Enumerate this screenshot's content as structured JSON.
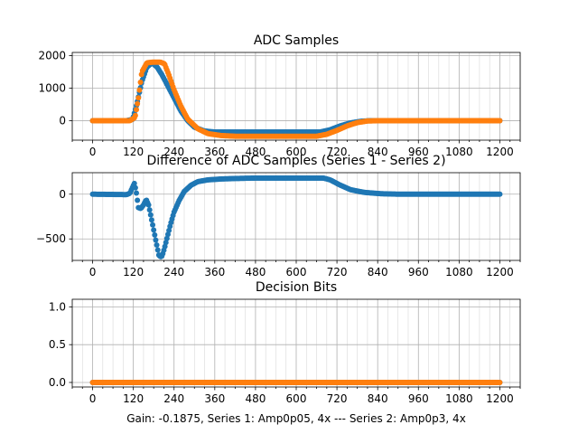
{
  "footer": "Gain: -0.1875, Series 1: Amp0p05, 4x --- Series 2: Amp0p3, 4x",
  "colors": {
    "series1": "#1f77b4",
    "series2": "#ff7f0e"
  },
  "chart_data": [
    {
      "type": "scatter",
      "title": "ADC Samples",
      "xlim": [
        -60,
        1260
      ],
      "ylim": [
        -600,
        2100
      ],
      "xticks": [
        0,
        120,
        240,
        360,
        480,
        600,
        720,
        840,
        960,
        1080,
        1200
      ],
      "xtick_labels": [
        "0",
        "120",
        "240",
        "360",
        "480",
        "600",
        "720",
        "840",
        "960",
        "1080",
        "1200"
      ],
      "yticks": [
        0,
        1000,
        2000
      ],
      "ytick_labels": [
        "0",
        "1000",
        "2000"
      ],
      "x_minor_step": 30,
      "grid": true,
      "series": [
        {
          "color": "#1f77b4",
          "x": [
            0,
            100,
            118,
            130,
            145,
            160,
            175,
            190,
            205,
            220,
            240,
            260,
            280,
            300,
            330,
            360,
            400,
            480,
            600,
            670,
            700,
            730,
            760,
            790,
            820,
            860,
            900,
            1200
          ],
          "y": [
            0,
            0,
            40,
            500,
            1200,
            1650,
            1780,
            1650,
            1400,
            1100,
            700,
            300,
            0,
            -200,
            -320,
            -350,
            -350,
            -350,
            -350,
            -350,
            -280,
            -160,
            -70,
            -20,
            0,
            0,
            0,
            0
          ]
        },
        {
          "color": "#ff7f0e",
          "x": [
            0,
            110,
            125,
            135,
            145,
            160,
            175,
            200,
            212,
            225,
            240,
            260,
            280,
            310,
            340,
            380,
            420,
            480,
            600,
            660,
            690,
            720,
            750,
            780,
            810,
            850,
            900,
            1200
          ],
          "y": [
            0,
            0,
            100,
            700,
            1500,
            1780,
            1800,
            1800,
            1750,
            1400,
            950,
            450,
            50,
            -250,
            -400,
            -460,
            -480,
            -480,
            -480,
            -480,
            -420,
            -300,
            -160,
            -60,
            -10,
            0,
            0,
            0
          ]
        }
      ]
    },
    {
      "type": "scatter",
      "title": "Difference of ADC Samples (Series 1 - Series 2)",
      "xlim": [
        -60,
        1260
      ],
      "ylim": [
        -740,
        240
      ],
      "xticks": [
        0,
        120,
        240,
        360,
        480,
        600,
        720,
        840,
        960,
        1080,
        1200
      ],
      "xtick_labels": [
        "0",
        "120",
        "240",
        "360",
        "480",
        "600",
        "720",
        "840",
        "960",
        "1080",
        "1200"
      ],
      "yticks": [
        -500,
        0
      ],
      "ytick_labels": [
        "−500",
        "0"
      ],
      "x_minor_step": 30,
      "grid": true,
      "series": [
        {
          "color": "#1f77b4",
          "x": [
            0,
            100,
            110,
            118,
            123,
            128,
            135,
            142,
            150,
            158,
            165,
            172,
            180,
            188,
            195,
            200,
            205,
            212,
            220,
            230,
            240,
            255,
            270,
            290,
            310,
            340,
            380,
            420,
            480,
            560,
            640,
            680,
            700,
            730,
            760,
            800,
            850,
            900,
            1000,
            1100,
            1200
          ],
          "y": [
            0,
            -5,
            10,
            80,
            120,
            40,
            -150,
            -160,
            -120,
            -60,
            -120,
            -250,
            -400,
            -550,
            -680,
            -700,
            -690,
            -600,
            -480,
            -330,
            -200,
            -70,
            30,
            100,
            140,
            160,
            170,
            175,
            180,
            180,
            180,
            180,
            160,
            100,
            50,
            20,
            5,
            0,
            0,
            0,
            0
          ]
        }
      ]
    },
    {
      "type": "scatter",
      "title": "Decision Bits",
      "xlim": [
        -60,
        1260
      ],
      "ylim": [
        -0.06,
        1.1
      ],
      "xticks": [
        0,
        120,
        240,
        360,
        480,
        600,
        720,
        840,
        960,
        1080,
        1200
      ],
      "xtick_labels": [
        "0",
        "120",
        "240",
        "360",
        "480",
        "600",
        "720",
        "840",
        "960",
        "1080",
        "1200"
      ],
      "yticks": [
        0.0,
        0.5,
        1.0
      ],
      "ytick_labels": [
        "0.0",
        "0.5",
        "1.0"
      ],
      "x_minor_step": 30,
      "grid": true,
      "series": [
        {
          "color": "#1f77b4",
          "x": [
            0,
            1200
          ],
          "y": [
            0,
            0
          ]
        },
        {
          "color": "#ff7f0e",
          "x": [
            0,
            1200
          ],
          "y": [
            0,
            0
          ]
        }
      ]
    }
  ]
}
